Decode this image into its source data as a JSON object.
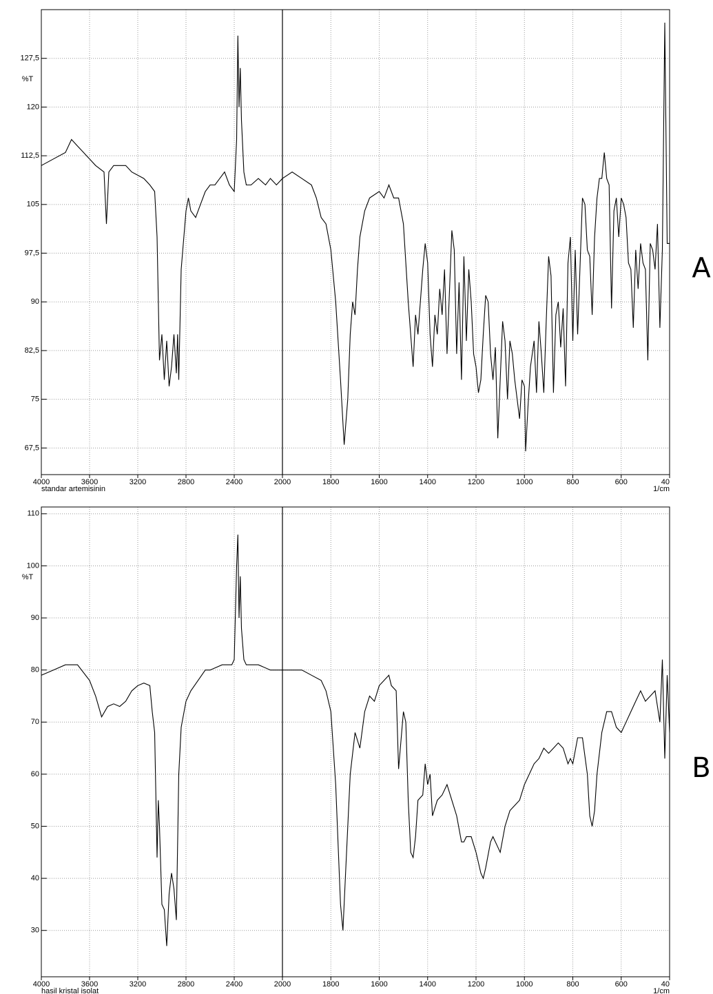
{
  "chart_data": [
    {
      "type": "line",
      "panel_label": "A",
      "sample_label": "standar artemisinin",
      "xlabel": "1/cm",
      "ylabel": "%T",
      "xlim": [
        4000,
        400
      ],
      "xbreak": 2000,
      "ylim": [
        63.4,
        135
      ],
      "grid": true,
      "color": "#000000",
      "xticks": [
        4000,
        3600,
        3200,
        2800,
        2400,
        2000,
        1800,
        1600,
        1400,
        1200,
        1000,
        800,
        600,
        {
          "value": 400,
          "label": "40"
        }
      ],
      "yticks": [
        {
          "value": 67.5,
          "label": "67,5"
        },
        75,
        {
          "value": 82.5,
          "label": "82,5"
        },
        90,
        {
          "value": 97.5,
          "label": "97,5"
        },
        105,
        {
          "value": 112.5,
          "label": "112,5"
        },
        120,
        {
          "value": 127.5,
          "label": "127,5"
        }
      ],
      "x": [
        4000,
        3900,
        3800,
        3750,
        3700,
        3650,
        3600,
        3550,
        3480,
        3460,
        3440,
        3400,
        3300,
        3250,
        3200,
        3150,
        3100,
        3060,
        3040,
        3020,
        3000,
        2980,
        2960,
        2940,
        2920,
        2900,
        2880,
        2870,
        2860,
        2840,
        2800,
        2780,
        2760,
        2720,
        2680,
        2640,
        2600,
        2560,
        2520,
        2480,
        2440,
        2400,
        2380,
        2370,
        2360,
        2350,
        2340,
        2320,
        2300,
        2260,
        2200,
        2140,
        2100,
        2050,
        2000,
        1960,
        1920,
        1880,
        1860,
        1840,
        1820,
        1800,
        1780,
        1760,
        1745,
        1730,
        1720,
        1710,
        1700,
        1690,
        1680,
        1660,
        1640,
        1600,
        1580,
        1560,
        1540,
        1520,
        1500,
        1480,
        1460,
        1450,
        1440,
        1420,
        1410,
        1400,
        1390,
        1380,
        1370,
        1360,
        1350,
        1340,
        1330,
        1320,
        1300,
        1290,
        1280,
        1270,
        1260,
        1250,
        1240,
        1230,
        1220,
        1210,
        1200,
        1190,
        1180,
        1170,
        1160,
        1150,
        1140,
        1130,
        1120,
        1110,
        1100,
        1090,
        1080,
        1070,
        1060,
        1050,
        1040,
        1030,
        1020,
        1010,
        1000,
        995,
        985,
        975,
        960,
        950,
        940,
        930,
        920,
        910,
        900,
        890,
        880,
        870,
        860,
        850,
        840,
        830,
        820,
        810,
        800,
        790,
        780,
        760,
        750,
        740,
        730,
        720,
        710,
        700,
        690,
        680,
        670,
        660,
        650,
        640,
        630,
        620,
        610,
        600,
        590,
        580,
        570,
        560,
        550,
        540,
        530,
        520,
        510,
        500,
        490,
        480,
        470,
        460,
        450,
        440,
        430,
        420,
        410,
        400
      ],
      "values": [
        111,
        112,
        113,
        115,
        114,
        113,
        112,
        111,
        110,
        102,
        110,
        111,
        111,
        110,
        109.5,
        109,
        108,
        107,
        100,
        81,
        85,
        78,
        84,
        77,
        80,
        85,
        79,
        85,
        78,
        95,
        104,
        106,
        104,
        103,
        105,
        107,
        108,
        108,
        109,
        110,
        108,
        107,
        115,
        131,
        120,
        126,
        118,
        110,
        108,
        108,
        109,
        108,
        109,
        108,
        109,
        110,
        109,
        108,
        106,
        103,
        102,
        98,
        90,
        78,
        68,
        75,
        85,
        90,
        88,
        95,
        100,
        104,
        106,
        107,
        106,
        108,
        106,
        106,
        102,
        90,
        80,
        88,
        85,
        95,
        99,
        96,
        85,
        80,
        88,
        85,
        92,
        88,
        95,
        82,
        101,
        98,
        82,
        93,
        78,
        97,
        84,
        95,
        90,
        82,
        80,
        76,
        78,
        85,
        91,
        90,
        82,
        78,
        83,
        69,
        78,
        87,
        84,
        75,
        84,
        82,
        78,
        75,
        72,
        78,
        77,
        67,
        74,
        80,
        84,
        76,
        87,
        82,
        76,
        87,
        97,
        94,
        76,
        88,
        90,
        83,
        89,
        77,
        96,
        100,
        84,
        98,
        85,
        106,
        105,
        98,
        97,
        88,
        100,
        106,
        109,
        109,
        113,
        109,
        108,
        89,
        104,
        106,
        100,
        106,
        105,
        103,
        96,
        95,
        86,
        98,
        92,
        99,
        96,
        95,
        81,
        99,
        98,
        95,
        102,
        86,
        98,
        133,
        99,
        99
      ]
    },
    {
      "type": "line",
      "panel_label": "B",
      "sample_label": "hasil kristal isolat",
      "xlabel": "1/cm",
      "ylabel": "%T",
      "xlim": [
        4000,
        400
      ],
      "xbreak": 2000,
      "ylim": [
        21.1,
        111.3
      ],
      "grid": true,
      "color": "#000000",
      "xticks": [
        4000,
        3600,
        3200,
        2800,
        2400,
        2000,
        1800,
        1600,
        1400,
        1200,
        1000,
        800,
        600,
        {
          "value": 400,
          "label": "40"
        }
      ],
      "yticks": [
        30,
        40,
        50,
        60,
        70,
        80,
        90,
        100,
        110
      ],
      "x": [
        4000,
        3900,
        3800,
        3700,
        3600,
        3550,
        3500,
        3450,
        3400,
        3350,
        3300,
        3250,
        3200,
        3150,
        3100,
        3080,
        3060,
        3040,
        3030,
        3020,
        3000,
        2980,
        2960,
        2940,
        2920,
        2900,
        2880,
        2860,
        2840,
        2800,
        2760,
        2700,
        2640,
        2600,
        2500,
        2420,
        2400,
        2380,
        2370,
        2360,
        2350,
        2340,
        2320,
        2300,
        2200,
        2100,
        2000,
        1960,
        1920,
        1880,
        1840,
        1820,
        1800,
        1780,
        1760,
        1750,
        1740,
        1720,
        1700,
        1680,
        1660,
        1640,
        1620,
        1600,
        1580,
        1560,
        1550,
        1530,
        1520,
        1500,
        1490,
        1480,
        1470,
        1460,
        1450,
        1440,
        1420,
        1410,
        1400,
        1390,
        1380,
        1360,
        1340,
        1320,
        1300,
        1280,
        1260,
        1250,
        1240,
        1220,
        1200,
        1180,
        1170,
        1160,
        1140,
        1130,
        1110,
        1100,
        1080,
        1060,
        1040,
        1020,
        1000,
        980,
        960,
        940,
        920,
        900,
        880,
        860,
        840,
        820,
        810,
        800,
        780,
        760,
        740,
        730,
        720,
        710,
        700,
        680,
        660,
        640,
        620,
        600,
        580,
        560,
        540,
        520,
        500,
        480,
        460,
        440,
        430,
        420,
        410,
        400
      ],
      "values": [
        79,
        80,
        81,
        81,
        78,
        75,
        71,
        73,
        73.5,
        73,
        74,
        76,
        77,
        77.5,
        77,
        72,
        68,
        44,
        55,
        50,
        35,
        34,
        27,
        37,
        41,
        38,
        32,
        60,
        69,
        74,
        76,
        78,
        80,
        80,
        81,
        81,
        82,
        100,
        106,
        90,
        98,
        88,
        82,
        81,
        81,
        80,
        80,
        80,
        80,
        79,
        78,
        76,
        72,
        58,
        35,
        30,
        40,
        60,
        68,
        65,
        72,
        75,
        74,
        77,
        78,
        79,
        77,
        76,
        61,
        72,
        70,
        55,
        45,
        44,
        48,
        55,
        56,
        62,
        58,
        60,
        52,
        55,
        56,
        58,
        55,
        52,
        47,
        47,
        48,
        48,
        45,
        41,
        40,
        42,
        47,
        48,
        46,
        45,
        50,
        53,
        54,
        55,
        58,
        60,
        62,
        63,
        65,
        64,
        65,
        66,
        65,
        62,
        63,
        62,
        67,
        67,
        60,
        52,
        50,
        53,
        60,
        68,
        72,
        72,
        69,
        68,
        70,
        72,
        74,
        76,
        74,
        75,
        76,
        70,
        82,
        63,
        79,
        68
      ]
    }
  ]
}
